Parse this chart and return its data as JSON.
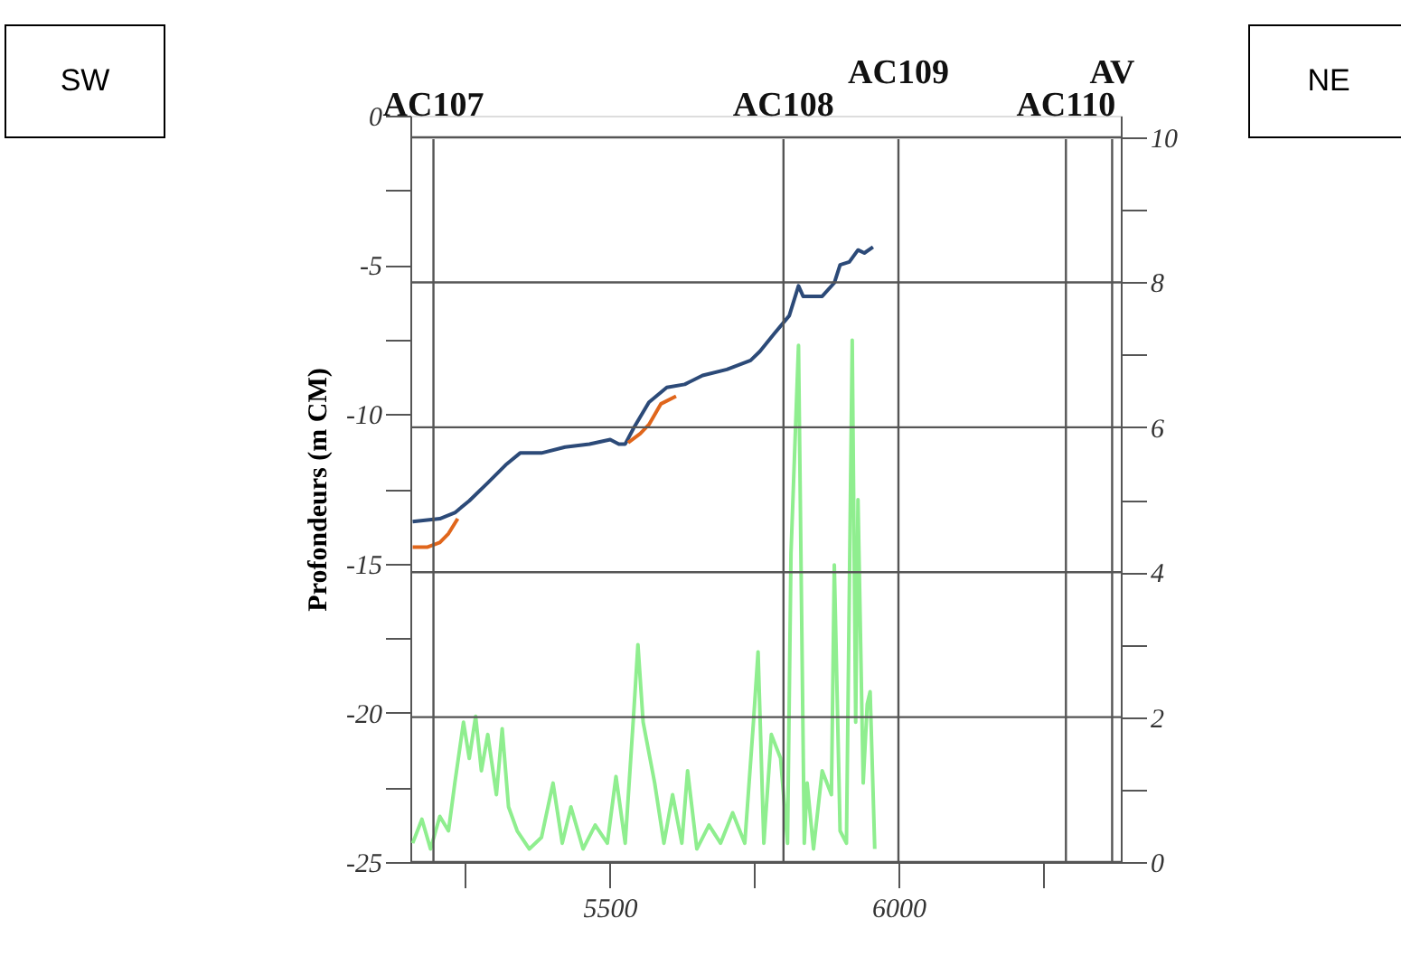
{
  "chart_data": {
    "type": "line",
    "ylabel": "Profondeurs (m CM)",
    "xlim": [
      5155,
      6385
    ],
    "xticks": [
      {
        "value": 5250,
        "label": null
      },
      5500,
      {
        "value": 5750,
        "label": null
      },
      6000,
      {
        "value": 6250,
        "label": null
      }
    ],
    "ylim": [
      -25,
      0
    ],
    "yticks": [
      -25,
      {
        "value": -22.5,
        "label": null
      },
      -20,
      {
        "value": -17.5,
        "label": null
      },
      -15,
      {
        "value": -12.5,
        "label": null
      },
      -10,
      {
        "value": -7.5,
        "label": null
      },
      -5,
      {
        "value": -2.5,
        "label": null
      },
      0
    ],
    "y2lim": [
      0,
      10.3
    ],
    "y2ticks": [
      0,
      {
        "value": 1,
        "label": null
      },
      2,
      {
        "value": 3,
        "label": null
      },
      4,
      {
        "value": 5,
        "label": null
      },
      6,
      {
        "value": 7,
        "label": null
      },
      8,
      {
        "value": 9,
        "label": null
      },
      10
    ],
    "grid": "y",
    "series": [
      {
        "color": "#2c4a78",
        "x": [
          5159,
          5206,
          5232,
          5257,
          5289,
          5320,
          5345,
          5382,
          5423,
          5465,
          5501,
          5516,
          5527,
          5542,
          5568,
          5599,
          5630,
          5661,
          5703,
          5744,
          5760,
          5785,
          5811,
          5827,
          5835,
          5868,
          5889,
          5899,
          5915,
          5930,
          5941,
          5956
        ],
        "values": [
          -13.6,
          -13.5,
          -13.3,
          -12.9,
          -12.3,
          -11.7,
          -11.3,
          -11.3,
          -11.1,
          -11.0,
          -10.85,
          -11.0,
          -11.0,
          -10.45,
          -9.6,
          -9.1,
          -9.0,
          -8.7,
          -8.5,
          -8.2,
          -7.9,
          -7.3,
          -6.7,
          -5.7,
          -6.05,
          -6.05,
          -5.6,
          -5.0,
          -4.9,
          -4.5,
          -4.6,
          -4.4
        ]
      },
      {
        "color": "#e0661c",
        "x": [
          5159,
          5185,
          5206,
          5221,
          5237,
          5400,
          5532,
          5553,
          5568,
          5589,
          5615
        ],
        "values": [
          -14.45,
          -14.45,
          -14.3,
          -14.0,
          -13.5,
          null,
          -10.95,
          -10.65,
          -10.35,
          -9.65,
          -9.4
        ]
      },
      {
        "color": "#8fee8f",
        "axis": "y2",
        "x": [
          5159,
          5175,
          5190,
          5206,
          5221,
          5232,
          5247,
          5257,
          5268,
          5278,
          5289,
          5304,
          5314,
          5325,
          5340,
          5361,
          5382,
          5402,
          5418,
          5433,
          5454,
          5475,
          5496,
          5511,
          5527,
          5542,
          5549,
          5558,
          5578,
          5594,
          5609,
          5625,
          5635,
          5651,
          5672,
          5692,
          5713,
          5734,
          5749,
          5757,
          5767,
          5780,
          5796,
          5808,
          5814,
          5827,
          5837,
          5842,
          5853,
          5868,
          5884,
          5889,
          5899,
          5910,
          5920,
          5926,
          5930,
          5939,
          5946,
          5951,
          5959
        ],
        "values": [
          0.26,
          0.59,
          0.18,
          0.63,
          0.43,
          1.09,
          1.93,
          1.43,
          2.01,
          1.26,
          1.76,
          0.93,
          1.84,
          0.76,
          0.43,
          0.18,
          0.34,
          1.09,
          0.26,
          0.76,
          0.18,
          0.51,
          0.26,
          1.18,
          0.26,
          2.09,
          3.0,
          1.93,
          1.09,
          0.26,
          0.93,
          0.26,
          1.26,
          0.18,
          0.51,
          0.26,
          0.68,
          0.26,
          1.93,
          2.9,
          0.26,
          1.76,
          1.43,
          0.26,
          4.26,
          7.13,
          0.26,
          1.09,
          0.18,
          1.26,
          0.93,
          4.1,
          0.43,
          0.26,
          7.2,
          1.93,
          5.0,
          1.09,
          2.18,
          2.35,
          0.18
        ]
      }
    ],
    "ref_lines": [
      {
        "axis": "x",
        "value": 5195,
        "label": "AC107"
      },
      {
        "axis": "x",
        "value": 5801,
        "label": "AC108"
      },
      {
        "axis": "x",
        "value": 6000,
        "label": "AC109"
      },
      {
        "axis": "x",
        "value": 6290,
        "label": "AC110"
      },
      {
        "axis": "x",
        "value": 6370,
        "label": "AV"
      }
    ],
    "annotations": [
      "SW",
      "NE"
    ]
  }
}
